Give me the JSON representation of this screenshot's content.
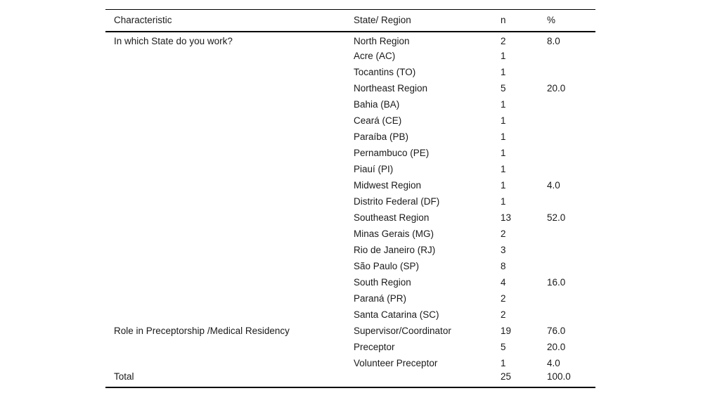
{
  "colors": {
    "background": "#ffffff",
    "text": "#1a1a1a",
    "rule": "#000000"
  },
  "table": {
    "columns": [
      {
        "key": "characteristic",
        "label": "Characteristic"
      },
      {
        "key": "state_region",
        "label": "State/ Region"
      },
      {
        "key": "n",
        "label": "n"
      },
      {
        "key": "pct",
        "label": "%"
      }
    ],
    "rows": [
      [
        "In which State do you work?",
        "North Region",
        "2",
        "8.0"
      ],
      [
        "",
        "Acre (AC)",
        "1",
        ""
      ],
      [
        "",
        "Tocantins (TO)",
        "1",
        ""
      ],
      [
        "",
        "Northeast Region",
        "5",
        "20.0"
      ],
      [
        "",
        "Bahia (BA)",
        "1",
        ""
      ],
      [
        "",
        "Ceará (CE)",
        "1",
        ""
      ],
      [
        "",
        "Paraíba (PB)",
        "1",
        ""
      ],
      [
        "",
        "Pernambuco (PE)",
        "1",
        ""
      ],
      [
        "",
        "Piauí (PI)",
        "1",
        ""
      ],
      [
        "",
        "Midwest Region",
        "1",
        "4.0"
      ],
      [
        "",
        "Distrito Federal (DF)",
        "1",
        ""
      ],
      [
        "",
        "Southeast Region",
        "13",
        "52.0"
      ],
      [
        "",
        "Minas Gerais (MG)",
        "2",
        ""
      ],
      [
        "",
        "Rio de Janeiro (RJ)",
        "3",
        ""
      ],
      [
        "",
        "São Paulo (SP)",
        "8",
        ""
      ],
      [
        "",
        "South Region",
        "4",
        "16.0"
      ],
      [
        "",
        "Paraná (PR)",
        "2",
        ""
      ],
      [
        "",
        "Santa Catarina (SC)",
        "2",
        ""
      ],
      [
        "Role in Preceptorship /Medical Residency",
        "Supervisor/Coordinator",
        "19",
        "76.0"
      ],
      [
        "",
        "Preceptor",
        "5",
        "20.0"
      ],
      [
        "",
        "Volunteer Preceptor",
        "1",
        "4.0"
      ],
      [
        "Total",
        "",
        "25",
        "100.0"
      ]
    ]
  }
}
